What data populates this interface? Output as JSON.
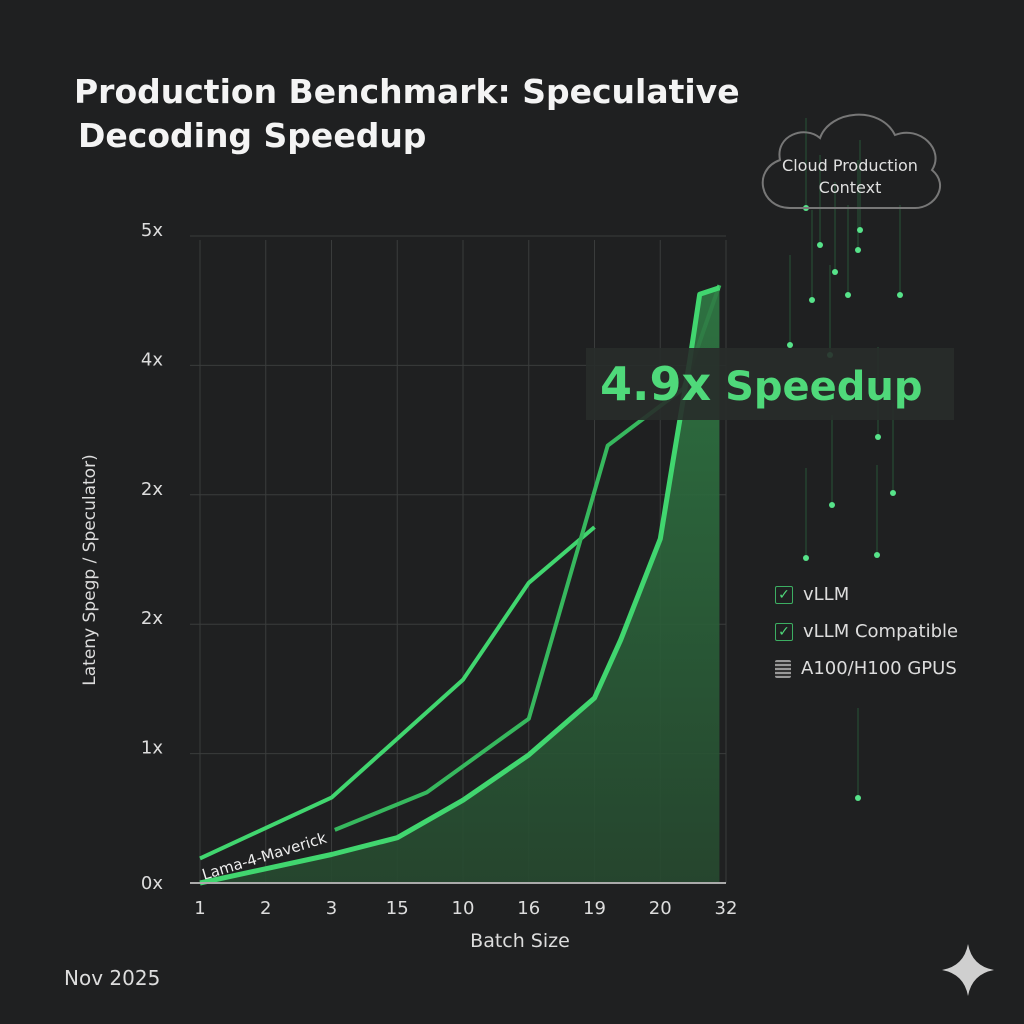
{
  "title_lines": [
    "Production Benchmark: Speculative",
    "Decoding Speedup"
  ],
  "callout": {
    "number": "4.9x",
    "text": " Speedup"
  },
  "cloud": {
    "line1": "Cloud Production",
    "line2": "Context",
    "icon": "chip-icon"
  },
  "legend": [
    {
      "icon": "checkbox-checked-icon",
      "label": "vLLM"
    },
    {
      "icon": "checkbox-checked-icon",
      "label": "vLLM Compatible"
    },
    {
      "icon": "gpu-chip-icon",
      "label": "A100/H100 GPUS"
    }
  ],
  "date": "Nov 2025",
  "colors": {
    "background": "#1f2021",
    "line": "#3ecf6a",
    "fill": "#2a5c37",
    "grid": "#3a3c3c"
  },
  "chart_data": {
    "type": "line",
    "title": "Production Benchmark: Speculative Decoding Speedup",
    "xlabel": "Batch Size",
    "ylabel": "Lateny Spegp / Speculator)",
    "x_tick_labels": [
      "1",
      "2",
      "3",
      "15",
      "10",
      "16",
      "19",
      "20",
      "32"
    ],
    "y_tick_labels": [
      "0x",
      "1x",
      "2x",
      "2x",
      "4x",
      "5x"
    ],
    "note": "x values are positions on the categorical batch-size axis (0 = '1' ... 8 = '32'); y values are positions on the tick scale (0 = '0x' ... 5 = '5x')",
    "grid": true,
    "series": [
      {
        "points": [
          [
            0,
            0.19
          ],
          [
            2,
            0.66
          ],
          [
            4,
            1.57
          ],
          [
            5,
            2.32
          ],
          [
            6,
            2.75
          ]
        ]
      },
      {
        "name": "Lama-4-Maverick",
        "points": [
          [
            2.05,
            0.41
          ],
          [
            3.45,
            0.7
          ],
          [
            5,
            1.27
          ],
          [
            6.2,
            3.38
          ],
          [
            7.35,
            3.82
          ],
          [
            7.9,
            4.62
          ]
        ]
      },
      {
        "filled": true,
        "points": [
          [
            0,
            0
          ],
          [
            2,
            0.22
          ],
          [
            3,
            0.35
          ],
          [
            4,
            0.64
          ],
          [
            5,
            0.99
          ],
          [
            6,
            1.43
          ],
          [
            6.4,
            1.88
          ],
          [
            7,
            2.66
          ],
          [
            7.2,
            3.28
          ],
          [
            7.45,
            4.04
          ],
          [
            7.6,
            4.55
          ],
          [
            7.9,
            4.6
          ]
        ]
      }
    ]
  }
}
